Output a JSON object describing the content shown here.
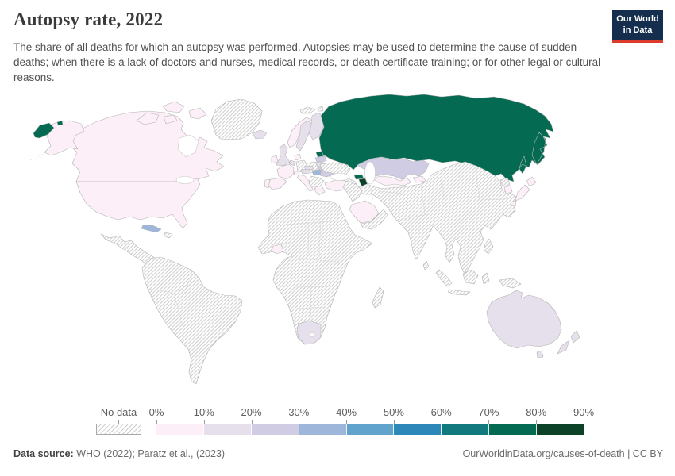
{
  "header": {
    "title": "Autopsy rate, 2022",
    "subtitle": "The share of all deaths for which an autopsy was performed. Autopsies may be used to determine the cause of sudden deaths; when there is a lack of doctors and nurses, medical records, or death certificate training; or for other legal or cultural reasons.",
    "logo": {
      "line1": "Our World",
      "line2": "in Data",
      "bg_color": "#152e4d",
      "accent_color": "#dd3b2e"
    }
  },
  "chart_data": {
    "type": "choropleth_map",
    "title": "Autopsy rate, 2022",
    "unit": "share of all deaths for which an autopsy was performed",
    "legend": {
      "no_data_label": "No data",
      "tick_labels": [
        "0%",
        "10%",
        "20%",
        "30%",
        "40%",
        "50%",
        "60%",
        "70%",
        "80%",
        "90%"
      ],
      "bins": [
        {
          "range": "0-10%",
          "color": "#fceff7"
        },
        {
          "range": "10-20%",
          "color": "#e6dfec"
        },
        {
          "range": "20-30%",
          "color": "#cfcce3"
        },
        {
          "range": "30-40%",
          "color": "#9db6da"
        },
        {
          "range": "40-50%",
          "color": "#60a4cd"
        },
        {
          "range": "50-60%",
          "color": "#2d87b8"
        },
        {
          "range": "60-70%",
          "color": "#12797f"
        },
        {
          "range": "70-80%",
          "color": "#046b52"
        },
        {
          "range": "80-90%",
          "color": "#0b4228"
        }
      ],
      "no_data_hatch_color": "#cdcdcd"
    },
    "values": {
      "russia": "70-80%",
      "estonia": "70-80%",
      "georgia": "70-80%",
      "azerbaijan": "80-90%",
      "cuba": "30-40%",
      "hungary": "30-40%",
      "kazakhstan": "20-30%",
      "latvia": "20-30%",
      "belarus": "20-30%",
      "romania": "20-30%",
      "australia": "10-20%",
      "new-zealand": "10-20%",
      "south-africa": "10-20%",
      "iceland": "10-20%",
      "united-kingdom": "10-20%",
      "finland": "10-20%",
      "sweden": "10-20%",
      "lithuania": "10-20%",
      "austria": "10-20%",
      "czechia": "10-20%",
      "netherlands": "10-20%",
      "united-states": "0-10%",
      "canada": "0-10%",
      "ireland": "0-10%",
      "norway": "0-10%",
      "denmark": "0-10%",
      "france": "0-10%",
      "spain": "0-10%",
      "portugal": "0-10%",
      "italy": "0-10%",
      "switzerland": "0-10%",
      "greece": "0-10%",
      "turkey": "0-10%",
      "uzbekistan": "0-10%",
      "kyrgyzstan": "0-10%",
      "saudi-arabia": "0-10%",
      "japan": "0-10%",
      "south-korea": "0-10%",
      "cote-divoire": "0-10%"
    },
    "no_data_regions": [
      "greenland",
      "mexico-central-america",
      "hispaniola",
      "south-america",
      "africa",
      "madagascar",
      "germany",
      "poland",
      "ukraine",
      "balkans",
      "levant-iraq",
      "yemen-oman",
      "asia-mainland",
      "north-korea",
      "sri-lanka",
      "indonesia",
      "papua-new-guinea",
      "philippines",
      "svalbard"
    ]
  },
  "footer": {
    "source_label": "Data source:",
    "source_text": "WHO (2022); Paratz et al., (2023)",
    "link_text": "OurWorldinData.org/causes-of-death | CC BY"
  }
}
